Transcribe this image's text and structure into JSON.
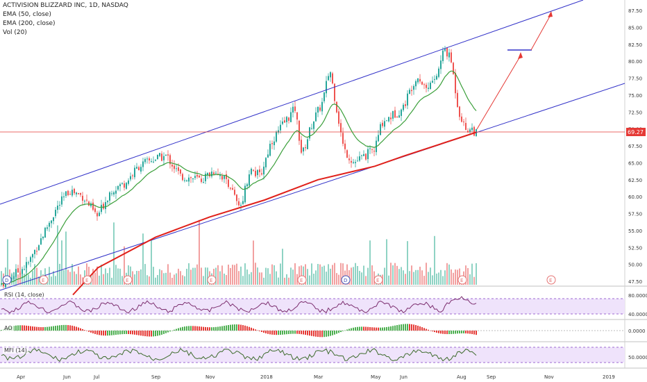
{
  "legend": {
    "symbol_line": "ACTIVISION BLIZZARD INC, 1D, NASDAQ",
    "ema50": "EMA (50, close)",
    "ema200": "EMA (200, close)",
    "vol": "Vol (20)"
  },
  "panes": {
    "rsi_label": "RSI (14, close)",
    "ao_label": "AO",
    "mfi_label": "MFI (14)"
  },
  "price_axis": {
    "ticks": [
      "87.50",
      "85.00",
      "82.50",
      "80.00",
      "77.50",
      "75.00",
      "72.50",
      "70.00",
      "67.50",
      "65.00",
      "62.50",
      "60.00",
      "57.50",
      "55.00",
      "52.50",
      "50.00",
      "47.50"
    ],
    "last_price": "69.27"
  },
  "rsi_axis": {
    "ticks": [
      "80.0000",
      "40.0000"
    ]
  },
  "ao_axis": {
    "ticks": [
      "0.0000"
    ]
  },
  "mfi_axis": {
    "ticks": [
      "50.0000"
    ]
  },
  "time_axis": {
    "labels": [
      "Apr",
      "Jun",
      "Jul",
      "Sep",
      "Nov",
      "2018",
      "Mar",
      "May",
      "Jun",
      "Aug",
      "Sep",
      "Nov",
      "2019"
    ]
  },
  "event_markers": [
    "D",
    "E",
    "E",
    "E",
    "E",
    "E",
    "D",
    "E",
    "E",
    "E"
  ],
  "colors": {
    "up": "#26a69a",
    "down": "#ef5350",
    "ema50": "#3a9f3a",
    "ema200": "#e0201a",
    "channel": "#3030c8",
    "arrow": "#e53935",
    "rsi": "#7b2d6e",
    "mfi": "#3d6b2c"
  },
  "chart_data": {
    "type": "candlestick",
    "title": "ACTIVISION BLIZZARD INC, 1D, NASDAQ",
    "ylim": [
      46,
      90
    ],
    "last_close": 69.27,
    "ema200_series": [
      {
        "x": "Apr",
        "y": 45.5
      },
      {
        "x": "Jul",
        "y": 49.5
      },
      {
        "x": "Sep",
        "y": 54.0
      },
      {
        "x": "Nov",
        "y": 57.0
      },
      {
        "x": "2018",
        "y": 59.5
      },
      {
        "x": "Mar",
        "y": 62.5
      },
      {
        "x": "May",
        "y": 64.5
      },
      {
        "x": "Jun",
        "y": 66.0
      },
      {
        "x": "Aug",
        "y": 69.5
      }
    ]
  }
}
